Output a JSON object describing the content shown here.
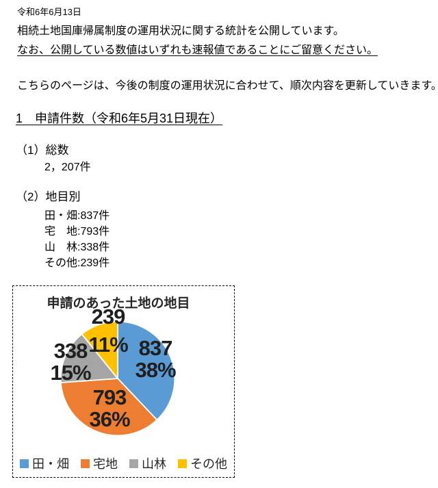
{
  "page": {
    "date": "令和6年6月13日",
    "intro_line1": "相続土地国庫帰属制度の運用状況に関する統計を公開しています。",
    "intro_line2": "なお、公開している数値はいずれも速報値であることにご留意ください。",
    "update_note": "こちらのページは、今後の制度の運用状況に合わせて、順次内容を更新していきます。",
    "section1": {
      "heading": "1　申請件数（令和6年5月31日現在）",
      "total_label": "（1）総数",
      "total_value": "2，207件",
      "by_type_label": "（2）地目別",
      "items": [
        "田・畑:837件",
        "宅　地:793件",
        "山　林:338件",
        "その他:239件"
      ]
    }
  },
  "chart_data": {
    "type": "pie",
    "title": "申請のあった土地の地目",
    "categories": [
      "田・畑",
      "宅地",
      "山林",
      "その他"
    ],
    "values": [
      837,
      793,
      338,
      239
    ],
    "percent_labels": [
      "38%",
      "36%",
      "15%",
      "11%"
    ],
    "colors": [
      "#5B9BD5",
      "#ED7D31",
      "#A5A5A5",
      "#FFC000"
    ],
    "total": 2207,
    "start_angle_deg": 0,
    "direction": "clockwise",
    "legend_position": "bottom",
    "label_style": "value and percent"
  }
}
